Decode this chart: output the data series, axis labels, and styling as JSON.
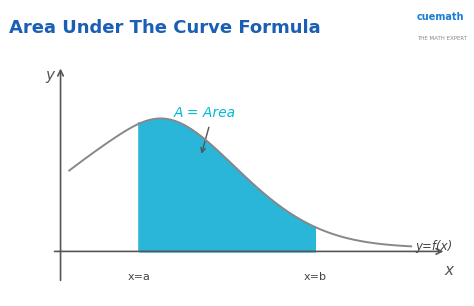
{
  "title": "Area Under The Curve Formula",
  "title_color": "#1a5fb4",
  "title_fontsize": 13,
  "bg_color": "#ffffff",
  "curve_color": "#888888",
  "fill_color": "#29b6d8",
  "fill_alpha": 1.0,
  "label_A": "A = Area",
  "label_A_color": "#00bcd4",
  "label_A_fontsize": 10,
  "label_yfx": "y=f(x)",
  "label_yfx_color": "#444444",
  "label_xa": "x=a",
  "label_xb": "x=b",
  "label_x": "x",
  "label_y": "y",
  "axis_color": "#555555",
  "tick_label_color": "#444444",
  "tick_label_fontsize": 8,
  "x_a": 1.8,
  "x_b": 5.8,
  "x_curve_start": 0.2,
  "x_curve_end": 8.0,
  "xlim": [
    -0.3,
    9.0
  ],
  "ylim": [
    -0.8,
    4.2
  ]
}
